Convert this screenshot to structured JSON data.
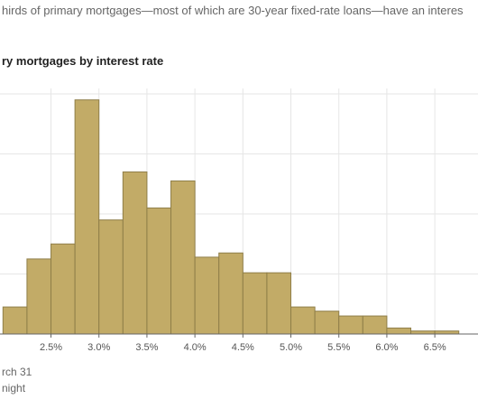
{
  "header": {
    "subtitle": "hirds of primary mortgages—most of which are 30-year fixed-rate loans—have an interes",
    "chart_title": "ry mortgages by interest rate"
  },
  "notes": {
    "line1": "rch 31",
    "line2": "night"
  },
  "colors": {
    "bar_fill": "#c2ab67",
    "bar_stroke": "#8f7e49",
    "grid": "#e6e6e6",
    "axis": "#666666"
  },
  "chart_data": {
    "type": "bar",
    "categories": [
      "2.0%",
      "2.25%",
      "2.5%",
      "2.75%",
      "3.0%",
      "3.25%",
      "3.5%",
      "3.75%",
      "4.0%",
      "4.25%",
      "4.5%",
      "4.75%",
      "5.0%",
      "5.25%",
      "5.5%",
      "5.75%",
      "6.0%",
      "6.25%",
      "6.5%",
      "6.75%"
    ],
    "values": [
      0.45,
      1.25,
      1.5,
      3.9,
      1.9,
      2.7,
      2.1,
      2.55,
      1.28,
      1.35,
      1.02,
      1.02,
      0.45,
      0.38,
      0.3,
      0.3,
      0.1,
      0.05,
      0.05,
      0.0
    ],
    "x_tick_labels": [
      "2.5%",
      "3.0%",
      "3.5%",
      "4.0%",
      "4.5%",
      "5.0%",
      "5.5%",
      "6.0%",
      "6.5%"
    ],
    "x_tick_values": [
      2.5,
      3.0,
      3.5,
      4.0,
      4.5,
      5.0,
      5.5,
      6.0,
      6.5
    ],
    "bin_width": 0.25,
    "xlim": [
      1.95,
      6.95
    ],
    "ylim": [
      0,
      4
    ],
    "y_gridlines": [
      1,
      2,
      3,
      4
    ],
    "grid": true,
    "title": "ry mortgages by interest rate",
    "xlabel": "",
    "ylabel": ""
  }
}
